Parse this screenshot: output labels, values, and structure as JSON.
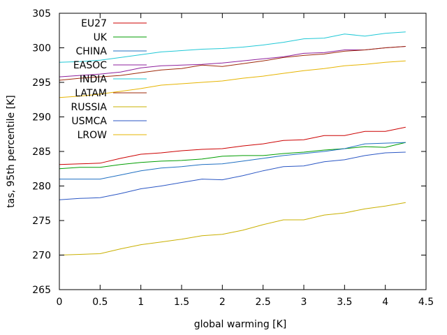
{
  "chart_data": {
    "type": "line",
    "xlabel": "global warming [K]",
    "ylabel": "tas, 95th percentile [K]",
    "xlim": [
      0,
      4.5
    ],
    "ylim": [
      265,
      305
    ],
    "xticks": [
      0,
      0.5,
      1,
      1.5,
      2,
      2.5,
      3,
      3.5,
      4,
      4.5
    ],
    "yticks": [
      265,
      270,
      275,
      280,
      285,
      290,
      295,
      300,
      305
    ],
    "xtick_labels": [
      "0",
      "0.5",
      "1",
      "1.5",
      "2",
      "2.5",
      "3",
      "3.5",
      "4",
      "4.5"
    ],
    "ytick_labels": [
      "265",
      "270",
      "275",
      "280",
      "285",
      "290",
      "295",
      "300",
      "305"
    ],
    "grid": false,
    "legend_position": "top-left",
    "x": [
      0,
      0.25,
      0.5,
      0.75,
      1,
      1.25,
      1.5,
      1.75,
      2,
      2.25,
      2.5,
      2.75,
      3,
      3.25,
      3.5,
      3.75,
      4,
      4.25
    ],
    "series": [
      {
        "name": "EU27",
        "color": "#cc0000",
        "values": [
          283.1,
          283.2,
          283.3,
          284.0,
          284.6,
          284.8,
          285.1,
          285.3,
          285.4,
          285.8,
          286.1,
          286.6,
          286.7,
          287.3,
          287.3,
          287.9,
          287.9,
          288.5
        ]
      },
      {
        "name": "UK",
        "color": "#009e00",
        "values": [
          282.5,
          282.7,
          282.7,
          283.1,
          283.4,
          283.6,
          283.7,
          283.9,
          284.3,
          284.4,
          284.4,
          284.7,
          284.9,
          285.2,
          285.4,
          285.7,
          285.6,
          286.3
        ]
      },
      {
        "name": "CHINA",
        "color": "#1f6fc2",
        "values": [
          281.0,
          281.0,
          281.0,
          281.6,
          282.2,
          282.6,
          282.8,
          283.1,
          283.2,
          283.6,
          284.0,
          284.4,
          284.7,
          285.0,
          285.4,
          286.1,
          286.2,
          286.3
        ]
      },
      {
        "name": "EASOC",
        "color": "#8e1f9c",
        "values": [
          295.8,
          296.0,
          296.2,
          296.5,
          297.1,
          297.4,
          297.5,
          297.6,
          297.8,
          298.1,
          298.4,
          298.7,
          299.2,
          299.3,
          299.7,
          299.7,
          300.0,
          300.2
        ]
      },
      {
        "name": "INDIA",
        "color": "#1fc8d6",
        "values": [
          297.9,
          298.0,
          298.2,
          298.6,
          299.0,
          299.4,
          299.6,
          299.8,
          299.9,
          300.1,
          300.4,
          300.8,
          301.3,
          301.4,
          302.0,
          301.7,
          302.1,
          302.3
        ]
      },
      {
        "name": "LATAM",
        "color": "#9e2a0a",
        "values": [
          295.3,
          295.6,
          295.8,
          296.0,
          296.4,
          296.8,
          297.0,
          297.5,
          297.3,
          297.7,
          298.1,
          298.6,
          298.9,
          299.1,
          299.5,
          299.7,
          300.0,
          300.2
        ]
      },
      {
        "name": "RUSSIA",
        "color": "#c9b000",
        "values": [
          270.0,
          270.1,
          270.2,
          270.9,
          271.5,
          271.9,
          272.3,
          272.8,
          273.0,
          273.6,
          274.4,
          275.1,
          275.1,
          275.8,
          276.1,
          276.7,
          277.1,
          277.6
        ]
      },
      {
        "name": "USMCA",
        "color": "#2a56c4",
        "values": [
          278.0,
          278.2,
          278.3,
          278.9,
          279.6,
          280.0,
          280.5,
          281.0,
          280.9,
          281.5,
          282.2,
          282.8,
          282.9,
          283.5,
          283.8,
          284.4,
          284.8,
          284.9
        ]
      },
      {
        "name": "LROW",
        "color": "#e6b400",
        "values": [
          292.8,
          293.0,
          293.3,
          293.7,
          294.1,
          294.6,
          294.8,
          295.0,
          295.2,
          295.6,
          295.9,
          296.3,
          296.7,
          297.0,
          297.4,
          297.6,
          297.9,
          298.1
        ]
      }
    ]
  }
}
